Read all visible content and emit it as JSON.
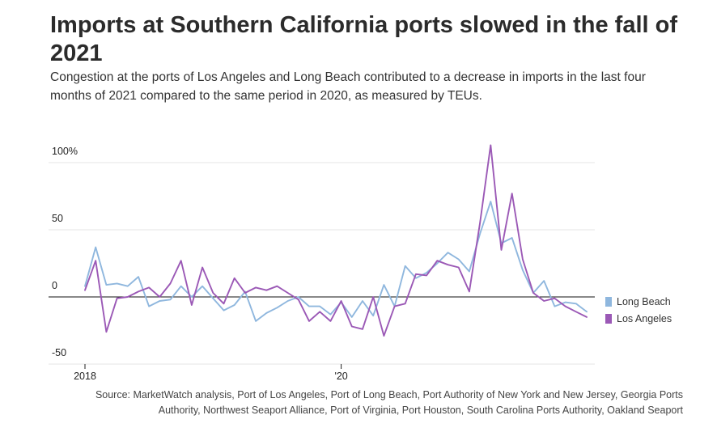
{
  "colors": {
    "long_beach": "#8fb7de",
    "los_angeles": "#9b59b6",
    "grid": "#e4e4e4",
    "zero": "#111111"
  },
  "chart_data": {
    "type": "line",
    "title": "Imports at Southern California ports slowed in the fall of 2021",
    "subtitle": "Congestion at the ports of Los Angeles and Long Beach contributed to a decrease in imports in the last four months of 2021 compared to the same period in 2020, as measured by TEUs.",
    "source": "Source: MarketWatch analysis, Port of Los Angeles, Port of Long Beach, Port Authority of New York and New Jersey, Georgia Ports Authority, Northwest Seaport Alliance, Port of Virginia, Port Houston, South Carolina Ports Authority, Oakland Seaport",
    "xlabel": "",
    "ylabel": "",
    "x_start": "2018-01",
    "x_end": "2021-12",
    "x_ticks": [
      {
        "label": "2018",
        "value": "2018-01"
      },
      {
        "label": "'20",
        "value": "2020-01"
      }
    ],
    "y_ticks": [
      {
        "label": "100%",
        "value": 100
      },
      {
        "label": "50",
        "value": 50
      },
      {
        "label": "0",
        "value": 0
      },
      {
        "label": "-50",
        "value": -50
      }
    ],
    "ylim": [
      -50,
      100
    ],
    "grid": true,
    "legend_position": "right",
    "series": [
      {
        "name": "Long Beach",
        "color": "#8fb7de",
        "values": [
          8,
          37,
          9,
          10,
          8,
          15,
          -7,
          -3,
          -2,
          8,
          0,
          8,
          -1,
          -10,
          -6,
          4,
          -18,
          -12,
          -8,
          -3,
          0,
          -7,
          -7,
          -13,
          -4,
          -15,
          -3,
          -14,
          9,
          -7,
          23,
          14,
          18,
          25,
          33,
          28,
          19,
          47,
          71,
          40,
          44,
          20,
          3,
          12,
          -7,
          -4,
          -5,
          -11
        ]
      },
      {
        "name": "Los Angeles",
        "color": "#9b59b6",
        "values": [
          5,
          27,
          -26,
          -1,
          0,
          4,
          7,
          0,
          10,
          27,
          -6,
          22,
          3,
          -5,
          14,
          3,
          7,
          5,
          8,
          3,
          -2,
          -18,
          -11,
          -18,
          -3,
          -22,
          -24,
          0,
          -29,
          -7,
          -5,
          17,
          16,
          27,
          24,
          22,
          4,
          55,
          113,
          35,
          77,
          28,
          3,
          -3,
          -1,
          -7,
          -11,
          -15
        ]
      }
    ]
  }
}
